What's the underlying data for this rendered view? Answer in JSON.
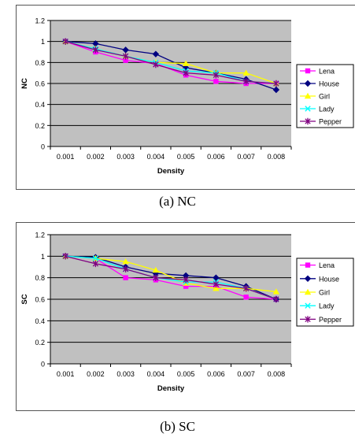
{
  "captions": [
    "(a)    NC",
    "(b) SC"
  ],
  "chart_data": [
    {
      "type": "line",
      "xlabel": "Density",
      "ylabel": "NC",
      "x": [
        "0.001",
        "0.002",
        "0.003",
        "0.004",
        "0.005",
        "0.006",
        "0.007",
        "0.008"
      ],
      "ylim": [
        0,
        1.2
      ],
      "yticks": [
        "0",
        "0.2",
        "0.4",
        "0.6",
        "0.8",
        "1",
        "1.2"
      ],
      "grid": true,
      "legend": "right",
      "series": [
        {
          "name": "Lena",
          "color": "#ff00ff",
          "marker": "square",
          "values": [
            1.0,
            0.9,
            0.82,
            0.79,
            0.68,
            0.62,
            0.6,
            0.6
          ]
        },
        {
          "name": "House",
          "color": "#000080",
          "marker": "diamond",
          "values": [
            1.0,
            0.98,
            0.92,
            0.88,
            0.75,
            0.7,
            0.64,
            0.54
          ]
        },
        {
          "name": "Girl",
          "color": "#ffff00",
          "marker": "triangle",
          "values": [
            1.0,
            0.93,
            0.86,
            0.8,
            0.79,
            0.7,
            0.7,
            0.6
          ]
        },
        {
          "name": "Lady",
          "color": "#00ffff",
          "marker": "x",
          "values": [
            1.0,
            0.93,
            0.86,
            0.8,
            0.72,
            0.7,
            0.62,
            0.6
          ]
        },
        {
          "name": "Pepper",
          "color": "#800080",
          "marker": "star",
          "values": [
            1.0,
            0.92,
            0.86,
            0.78,
            0.7,
            0.68,
            0.62,
            0.6
          ]
        }
      ]
    },
    {
      "type": "line",
      "xlabel": "Density",
      "ylabel": "SC",
      "x": [
        "0.001",
        "0.002",
        "0.003",
        "0.004",
        "0.005",
        "0.006",
        "0.007",
        "0.008"
      ],
      "ylim": [
        0,
        1.2
      ],
      "yticks": [
        "0",
        "0.2",
        "0.4",
        "0.6",
        "0.8",
        "1",
        "1.2"
      ],
      "grid": true,
      "legend": "right",
      "series": [
        {
          "name": "Lena",
          "color": "#ff00ff",
          "marker": "square",
          "values": [
            1.0,
            0.98,
            0.8,
            0.78,
            0.72,
            0.72,
            0.62,
            0.6
          ]
        },
        {
          "name": "House",
          "color": "#000080",
          "marker": "diamond",
          "values": [
            1.0,
            0.99,
            0.9,
            0.84,
            0.82,
            0.8,
            0.72,
            0.6
          ]
        },
        {
          "name": "Girl",
          "color": "#ffff00",
          "marker": "triangle",
          "values": [
            1.0,
            0.98,
            0.95,
            0.87,
            0.75,
            0.7,
            0.7,
            0.67
          ]
        },
        {
          "name": "Lady",
          "color": "#00ffff",
          "marker": "x",
          "values": [
            1.0,
            0.98,
            0.88,
            0.8,
            0.76,
            0.76,
            0.7,
            0.6
          ]
        },
        {
          "name": "Pepper",
          "color": "#800080",
          "marker": "star",
          "values": [
            1.0,
            0.93,
            0.88,
            0.8,
            0.78,
            0.74,
            0.7,
            0.6
          ]
        }
      ]
    }
  ]
}
